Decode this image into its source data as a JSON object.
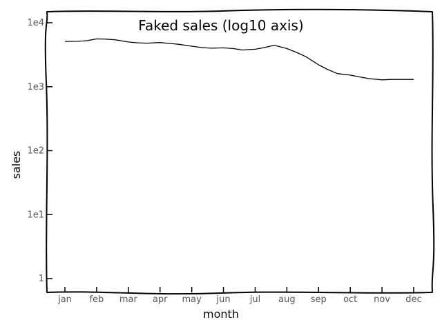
{
  "chart_data": {
    "type": "line",
    "title": "Faked sales (log10 axis)",
    "xlabel": "month",
    "ylabel": "sales",
    "yscale": "log10",
    "ylim": [
      1,
      10000
    ],
    "grid": false,
    "categories": [
      "jan",
      "feb",
      "mar",
      "apr",
      "may",
      "jun",
      "jul",
      "aug",
      "sep",
      "oct",
      "nov",
      "dec"
    ],
    "x": [
      1,
      2,
      3,
      4,
      5,
      6,
      7,
      8,
      9,
      10,
      11,
      12
    ],
    "y_ticks": [
      {
        "value": 1,
        "label": "1"
      },
      {
        "value": 10,
        "label": "1e1"
      },
      {
        "value": 100,
        "label": "1e2"
      },
      {
        "value": 1000,
        "label": "1e3"
      },
      {
        "value": 10000,
        "label": "1e4"
      }
    ],
    "series": [
      {
        "x": [
          1,
          1.4,
          1.7,
          2,
          2.3,
          2.6,
          3,
          3.3,
          3.6,
          4,
          4.3,
          4.6,
          5,
          5.3,
          5.6,
          6,
          6.3,
          6.6,
          7,
          7.3,
          7.6,
          8,
          8.3,
          8.6,
          9,
          9.3,
          9.6,
          10,
          10.3,
          10.6,
          11,
          11.3,
          11.6,
          12
        ],
        "values": [
          5100,
          5130,
          5250,
          5600,
          5550,
          5400,
          5000,
          4850,
          4800,
          4900,
          4750,
          4600,
          4300,
          4100,
          4000,
          4050,
          3950,
          3750,
          3850,
          4100,
          4450,
          3950,
          3450,
          2950,
          2200,
          1850,
          1600,
          1520,
          1420,
          1340,
          1280,
          1300,
          1300,
          1300
        ]
      }
    ]
  }
}
